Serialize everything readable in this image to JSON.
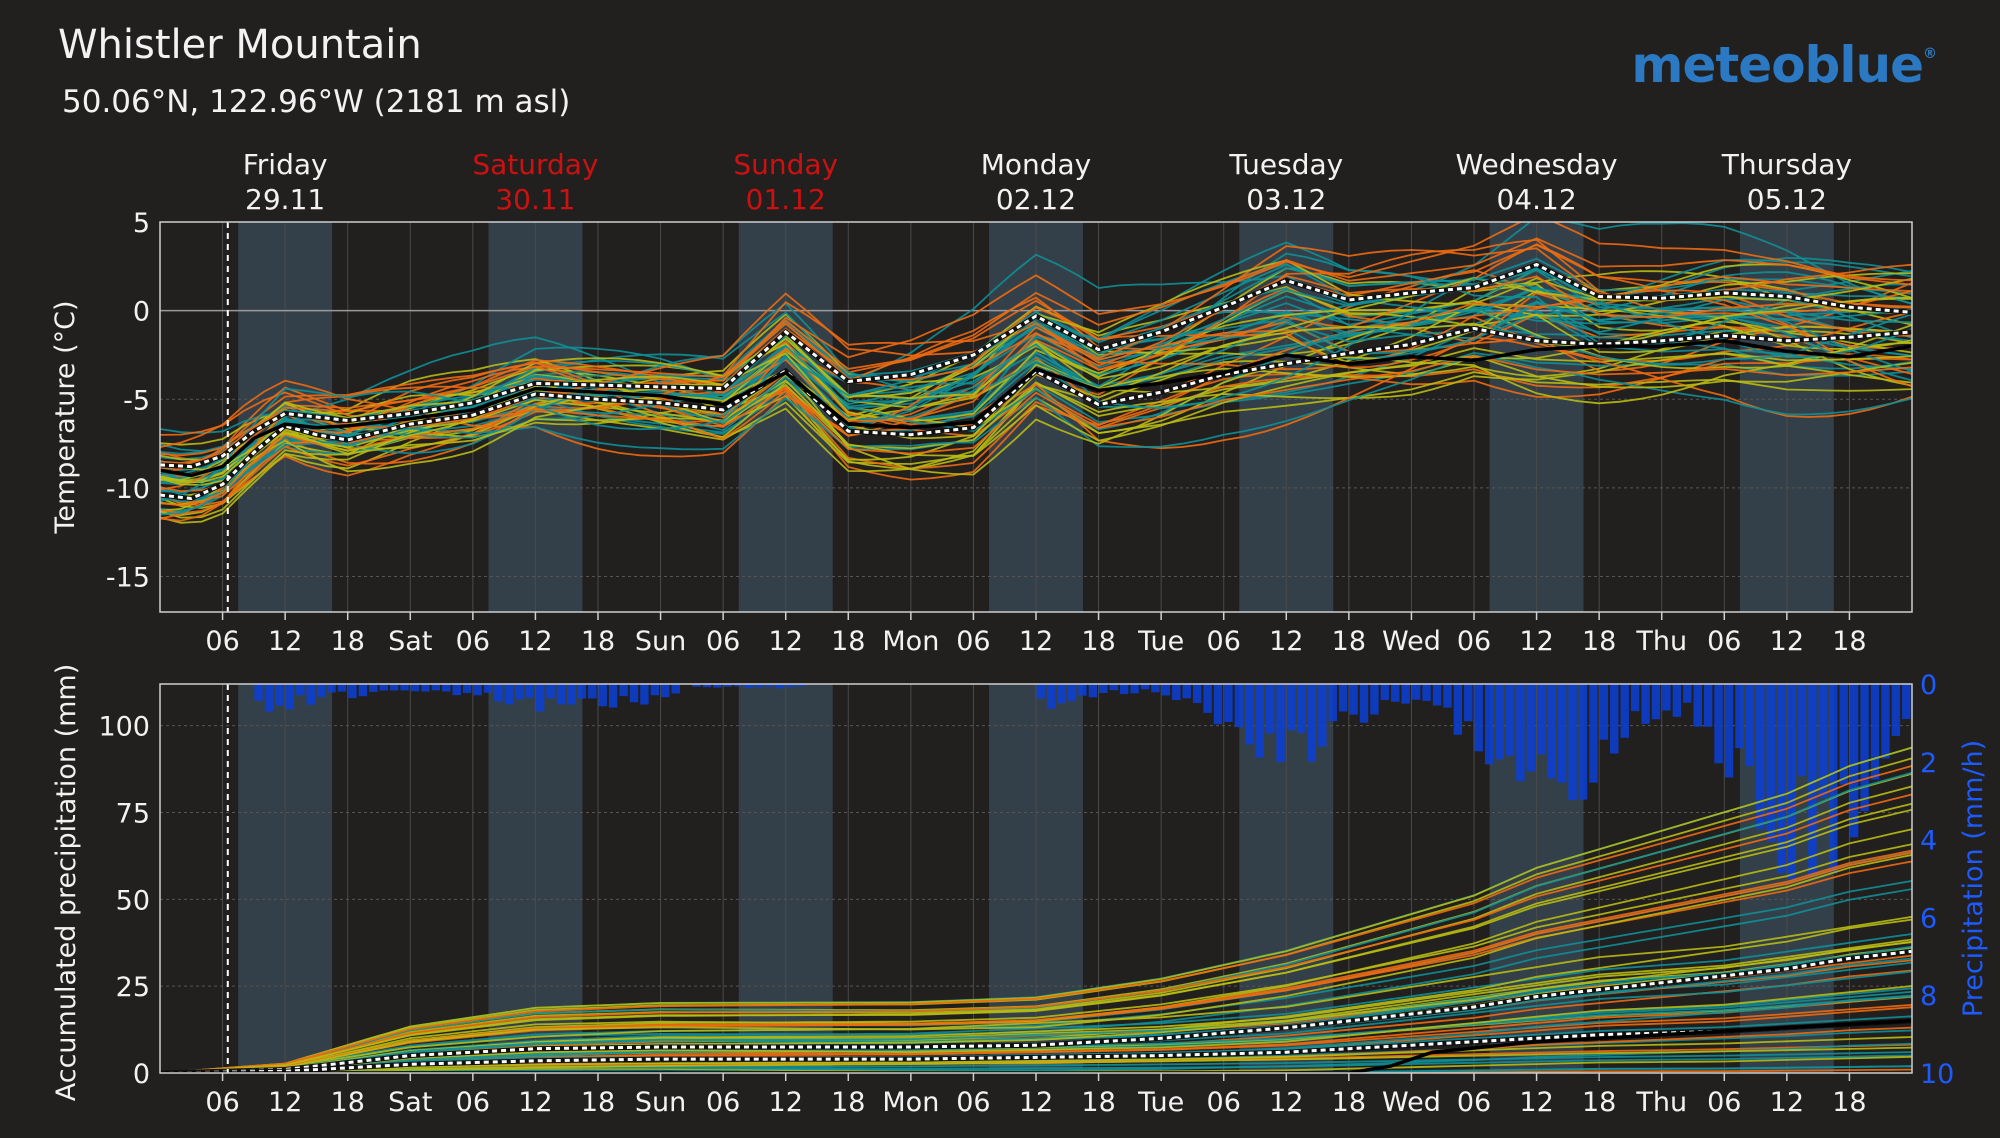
{
  "header": {
    "title": "Whistler Mountain",
    "subtitle": "50.06°N, 122.96°W (2181 m asl)",
    "logo": "meteoblue",
    "logo_mark": "®"
  },
  "days": [
    {
      "name": "Friday",
      "date": "29.11",
      "weekend": false
    },
    {
      "name": "Saturday",
      "date": "30.11",
      "weekend": true
    },
    {
      "name": "Sunday",
      "date": "01.12",
      "weekend": true
    },
    {
      "name": "Monday",
      "date": "02.12",
      "weekend": false
    },
    {
      "name": "Tuesday",
      "date": "03.12",
      "weekend": false
    },
    {
      "name": "Wednesday",
      "date": "04.12",
      "weekend": false
    },
    {
      "name": "Thursday",
      "date": "05.12",
      "weekend": false
    }
  ],
  "x_tick_labels": [
    "06",
    "12",
    "18",
    "Sat",
    "06",
    "12",
    "18",
    "Sun",
    "06",
    "12",
    "18",
    "Mon",
    "06",
    "12",
    "18",
    "Tue",
    "06",
    "12",
    "18",
    "Wed",
    "06",
    "12",
    "18",
    "Thu",
    "06",
    "12",
    "18"
  ],
  "colors": {
    "background": "#221f1f",
    "daylight_band": "#344049",
    "weekend_text": "#cc1111",
    "cold_member": "#0e8f96",
    "mid_member": "#b8bb12",
    "warm_member": "#ee6a10",
    "control_run": "#000000",
    "median_line": "#ffffff",
    "precip_bars": "#0a3fd8",
    "precip_axis": "#1d5bff"
  },
  "chart_data": [
    {
      "type": "line",
      "panel": "temperature",
      "ylabel": "Temperature (°C)",
      "ylim": [
        -17,
        5
      ],
      "yticks": [
        5,
        0,
        -5,
        -10,
        -15
      ],
      "x_unit": "hours from 29.11 00:00",
      "xlim": [
        0,
        168
      ],
      "daylight_hours": [
        [
          7.5,
          16.5
        ]
      ],
      "now_marker_hour": 6.5,
      "series": [
        {
          "role": "median-upper",
          "x": [
            0,
            3,
            6,
            9,
            12,
            15,
            18,
            24,
            30,
            36,
            42,
            48,
            54,
            60,
            66,
            72,
            78,
            84,
            90,
            96,
            102,
            108,
            114,
            120,
            126,
            132,
            138,
            144,
            150,
            156,
            162,
            168
          ],
          "values": [
            -8.7,
            -8.8,
            -8.2,
            -6.8,
            -5.8,
            -6.0,
            -6.2,
            -5.8,
            -5.2,
            -4.1,
            -4.2,
            -4.3,
            -4.4,
            -1.2,
            -4.0,
            -3.6,
            -2.5,
            -0.3,
            -2.2,
            -1.2,
            0.2,
            1.7,
            0.6,
            1.0,
            1.3,
            2.6,
            0.8,
            0.7,
            1.0,
            0.8,
            0.2,
            -0.1
          ]
        },
        {
          "role": "median-lower",
          "x": [
            0,
            3,
            6,
            9,
            12,
            15,
            18,
            24,
            30,
            36,
            42,
            48,
            54,
            60,
            66,
            72,
            78,
            84,
            90,
            96,
            102,
            108,
            114,
            120,
            126,
            132,
            138,
            144,
            150,
            156,
            162,
            168
          ],
          "values": [
            -10.4,
            -10.6,
            -9.8,
            -8.0,
            -6.5,
            -7.0,
            -7.3,
            -6.4,
            -5.9,
            -4.7,
            -5.0,
            -5.2,
            -5.6,
            -3.4,
            -6.8,
            -7.0,
            -6.6,
            -3.4,
            -5.3,
            -4.6,
            -3.6,
            -3.0,
            -2.4,
            -1.9,
            -1.0,
            -1.7,
            -1.9,
            -1.7,
            -1.4,
            -1.7,
            -1.5,
            -1.2
          ]
        },
        {
          "role": "control",
          "x": [
            0,
            3,
            6,
            9,
            12,
            15,
            18,
            24,
            30,
            36,
            42,
            48,
            54,
            60,
            66,
            72,
            78,
            84,
            90,
            96,
            102,
            108,
            114,
            120,
            126,
            132,
            138,
            144,
            150,
            156,
            162,
            168
          ],
          "values": [
            -9.0,
            -9.3,
            -8.8,
            -7.2,
            -6.4,
            -6.6,
            -6.5,
            -6.1,
            -5.6,
            -4.4,
            -4.6,
            -4.8,
            -5.3,
            -3.5,
            -6.4,
            -6.6,
            -6.3,
            -3.3,
            -4.5,
            -4.1,
            -3.5,
            -2.5,
            -3.0,
            -2.6,
            -2.8,
            -2.2,
            -2.0,
            -2.0,
            -1.7,
            -2.3,
            -2.6,
            -2.0
          ]
        }
      ]
    },
    {
      "type": "line",
      "panel": "precipitation",
      "ylabel": "Accumulated precipitation (mm)",
      "ylim": [
        0,
        112
      ],
      "yticks": [
        0,
        25,
        50,
        75,
        100
      ],
      "y2label": "Precipitation (mm/h)",
      "y2lim": [
        0,
        10
      ],
      "y2ticks": [
        0,
        2,
        4,
        6,
        8,
        10
      ],
      "y2_inverted": true,
      "x_unit": "hours from 29.11 00:00",
      "xlim": [
        0,
        168
      ],
      "series": [
        {
          "role": "median-upper",
          "x": [
            0,
            12,
            18,
            24,
            30,
            36,
            48,
            60,
            72,
            84,
            96,
            108,
            114,
            120,
            126,
            132,
            138,
            144,
            150,
            156,
            162,
            168
          ],
          "values": [
            0,
            1,
            3,
            5,
            6,
            7,
            7.5,
            7.5,
            7.5,
            8,
            10,
            13,
            15,
            17,
            19,
            22,
            24,
            26,
            28,
            30,
            33,
            35
          ]
        },
        {
          "role": "median-lower",
          "x": [
            0,
            12,
            18,
            24,
            30,
            36,
            48,
            60,
            72,
            84,
            96,
            108,
            114,
            120,
            126,
            132,
            138,
            144,
            150,
            156,
            162,
            168
          ],
          "values": [
            0,
            0.5,
            1.5,
            2.5,
            3,
            3.5,
            4,
            4,
            4,
            4.5,
            5,
            6,
            7,
            8,
            9,
            10,
            11,
            11.5,
            12,
            13,
            14,
            15
          ]
        },
        {
          "role": "control",
          "x": [
            0,
            36,
            72,
            96,
            114,
            118,
            122,
            132,
            144,
            156,
            168
          ],
          "values": [
            0,
            0,
            0,
            0,
            0,
            2,
            6,
            9,
            11,
            13,
            15
          ]
        }
      ],
      "hourly_bars_x_step": 1,
      "hourly_bars_mm_h_note": "max per hour"
    }
  ]
}
